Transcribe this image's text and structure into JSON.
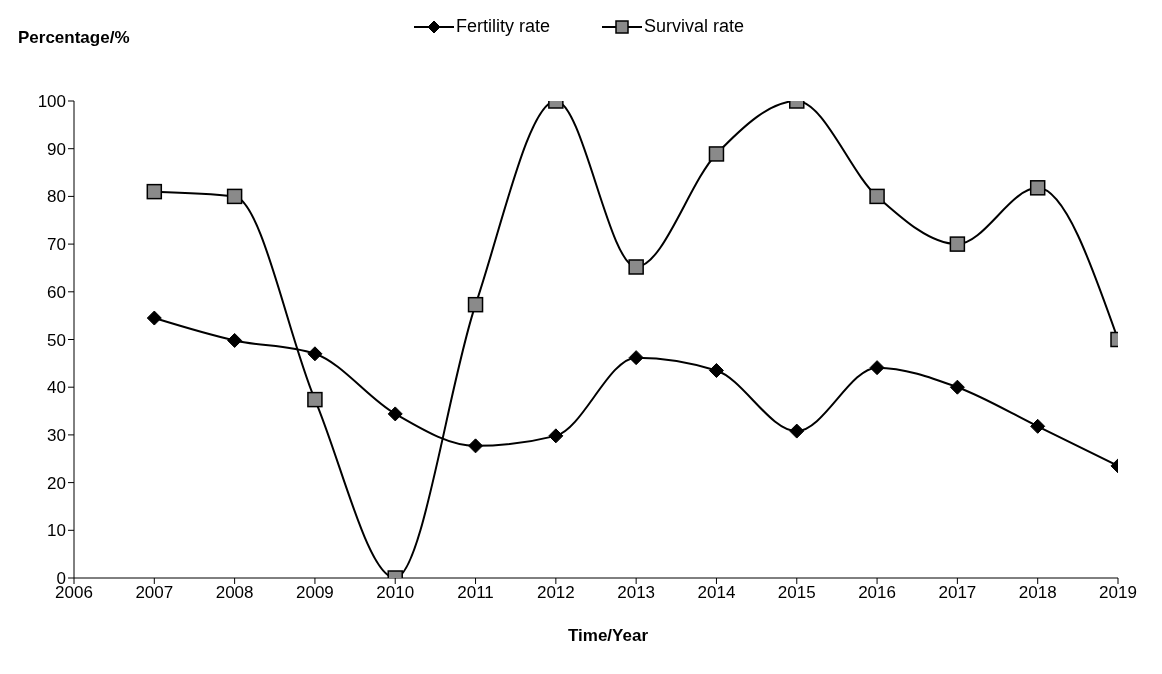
{
  "chart_data": {
    "type": "line",
    "xlabel": "Time/Year",
    "ylabel": "Percentage/%",
    "x": [
      2007,
      2008,
      2009,
      2010,
      2011,
      2012,
      2013,
      2014,
      2015,
      2016,
      2017,
      2018,
      2019
    ],
    "series": [
      {
        "name": "Fertility rate",
        "color": "#000000",
        "marker": "diamond",
        "values": [
          54.5,
          49.8,
          47,
          34.4,
          27.7,
          29.8,
          46.2,
          43.5,
          30.8,
          44.1,
          40,
          31.8,
          23.5
        ]
      },
      {
        "name": "Survival rate",
        "color": "#000000",
        "marker": "square",
        "values": [
          81,
          80,
          37.4,
          0,
          57.3,
          100,
          65.2,
          88.9,
          100,
          80,
          70,
          81.8,
          50
        ]
      }
    ],
    "xlim": [
      2006,
      2019
    ],
    "xticks": [
      2006,
      2007,
      2008,
      2009,
      2010,
      2011,
      2012,
      2013,
      2014,
      2015,
      2016,
      2017,
      2018,
      2019
    ],
    "ylim": [
      0,
      100
    ],
    "yticks": [
      0,
      10,
      20,
      30,
      40,
      50,
      60,
      70,
      80,
      90,
      100
    ],
    "legend": "top",
    "line_style": "solid"
  }
}
